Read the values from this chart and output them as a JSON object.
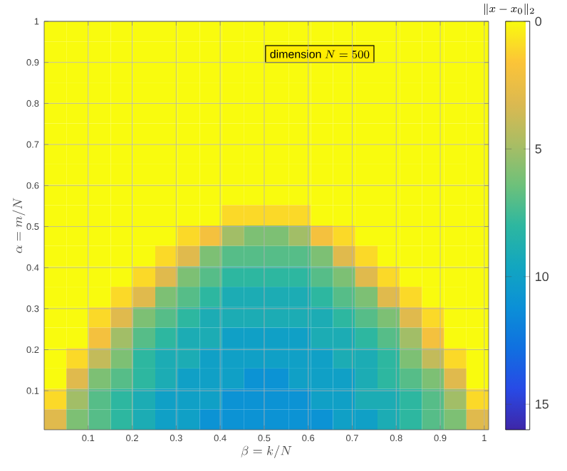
{
  "chart_data": {
    "type": "heatmap",
    "xlabel": "\\beta = k/N",
    "ylabel": "\\alpha = m/N",
    "clabel": "\\|x - x_0\\|_2",
    "annotations": [
      "\\mathrm{dimension}\\ N = 500"
    ],
    "xlim": [
      0,
      1.01
    ],
    "ylim": [
      0.005,
      1
    ],
    "xticks": [
      0.1,
      0.2,
      0.3,
      0.4,
      0.5,
      0.6,
      0.7,
      0.8,
      0.9,
      1
    ],
    "yticks": [
      0.1,
      0.2,
      0.3,
      0.4,
      0.5,
      0.6,
      0.7,
      0.8,
      0.9,
      1
    ],
    "clim": [
      0,
      16
    ],
    "cticks": [
      0,
      5,
      10,
      15
    ],
    "grid": true,
    "x": [
      0.02525,
      0.07575,
      0.12625,
      0.17675,
      0.22725,
      0.27775,
      0.32825,
      0.37875,
      0.42925,
      0.47975,
      0.53025,
      0.58075,
      0.63125,
      0.68175,
      0.73225,
      0.78275,
      0.83325,
      0.88375,
      0.93425,
      0.98475
    ],
    "y": [
      0.975125,
      0.925375,
      0.875625,
      0.825875,
      0.776125,
      0.726375,
      0.676625,
      0.626875,
      0.577125,
      0.527375,
      0.477625,
      0.427875,
      0.378125,
      0.328375,
      0.278625,
      0.228875,
      0.179125,
      0.129375,
      0.079625,
      0.029875
    ],
    "cells": [
      [
        0,
        0,
        0,
        0,
        0,
        0,
        0,
        0,
        0,
        0,
        0,
        0,
        0,
        0,
        0,
        0,
        0,
        0,
        0,
        0
      ],
      [
        0,
        0,
        0,
        0,
        0,
        0,
        0,
        0,
        0,
        0,
        0,
        0,
        0,
        0,
        0,
        0,
        0,
        0,
        0,
        0
      ],
      [
        0,
        0,
        0,
        0,
        0,
        0,
        0,
        0,
        0,
        0,
        0,
        0,
        0,
        0,
        0,
        0,
        0,
        0,
        0,
        0
      ],
      [
        0,
        0,
        0,
        0,
        0,
        0,
        0,
        0,
        0,
        0,
        0,
        0,
        0,
        0,
        0,
        0,
        0,
        0,
        0,
        0
      ],
      [
        0,
        0,
        0,
        0,
        0,
        0,
        0,
        0,
        0,
        0,
        0,
        0,
        0,
        0,
        0,
        0,
        0,
        0,
        0,
        0
      ],
      [
        0,
        0,
        0,
        0,
        0,
        0,
        0,
        0,
        0,
        0,
        0,
        0,
        0,
        0,
        0,
        0,
        0,
        0,
        0,
        0
      ],
      [
        0,
        0,
        0,
        0,
        0,
        0,
        0,
        0,
        0,
        0,
        0,
        0,
        0,
        0,
        0,
        0,
        0,
        0,
        0,
        0
      ],
      [
        0,
        0,
        0,
        0,
        0,
        0,
        0,
        0,
        0,
        0,
        0,
        0,
        0,
        0,
        0,
        0,
        0,
        0,
        0,
        0
      ],
      [
        0,
        0,
        0,
        0,
        0,
        0,
        0,
        0,
        0,
        0,
        0,
        0,
        0,
        0,
        0,
        0,
        0,
        0,
        0,
        0
      ],
      [
        0,
        0,
        0,
        0,
        0,
        0,
        0,
        0,
        1,
        1,
        1,
        1,
        0,
        0,
        0,
        0,
        0,
        0,
        0,
        0
      ],
      [
        0,
        0,
        0,
        0,
        0,
        0,
        1,
        2,
        5,
        6,
        6,
        5,
        2,
        1,
        0,
        0,
        0,
        0,
        0,
        0
      ],
      [
        0,
        0,
        0,
        0,
        0,
        1,
        3,
        6,
        7,
        7,
        7,
        7,
        6,
        3,
        1,
        0,
        0,
        0,
        0,
        0
      ],
      [
        0,
        0,
        0,
        0,
        1,
        3,
        6,
        7,
        8,
        8,
        8,
        8,
        7,
        6,
        3,
        1,
        0,
        0,
        0,
        0
      ],
      [
        0,
        0,
        0,
        1,
        3,
        6,
        7,
        8,
        9,
        9,
        9,
        9,
        8,
        7,
        6,
        3,
        1,
        0,
        0,
        0
      ],
      [
        0,
        0,
        1,
        3,
        6,
        7,
        8,
        9,
        9,
        9,
        9,
        9,
        9,
        8,
        7,
        6,
        3,
        1,
        0,
        0
      ],
      [
        0,
        0,
        2,
        5,
        7,
        8,
        9,
        9,
        10,
        10,
        10,
        10,
        9,
        9,
        8,
        7,
        5,
        2,
        0,
        0
      ],
      [
        0,
        1,
        4,
        6,
        8,
        9,
        9,
        10,
        10,
        10,
        10,
        10,
        10,
        9,
        9,
        8,
        6,
        4,
        1,
        0
      ],
      [
        0,
        3,
        6,
        7,
        8,
        9,
        10,
        10,
        10,
        11,
        11,
        10,
        10,
        10,
        9,
        8,
        7,
        6,
        3,
        0
      ],
      [
        1,
        5,
        7,
        8,
        9,
        10,
        10,
        10,
        11,
        11,
        11,
        11,
        10,
        10,
        9,
        9,
        8,
        7,
        5,
        1
      ],
      [
        3,
        6,
        7,
        8,
        9,
        10,
        10,
        11,
        11,
        11,
        11,
        11,
        11,
        10,
        10,
        9,
        8,
        7,
        6,
        3
      ]
    ]
  }
}
